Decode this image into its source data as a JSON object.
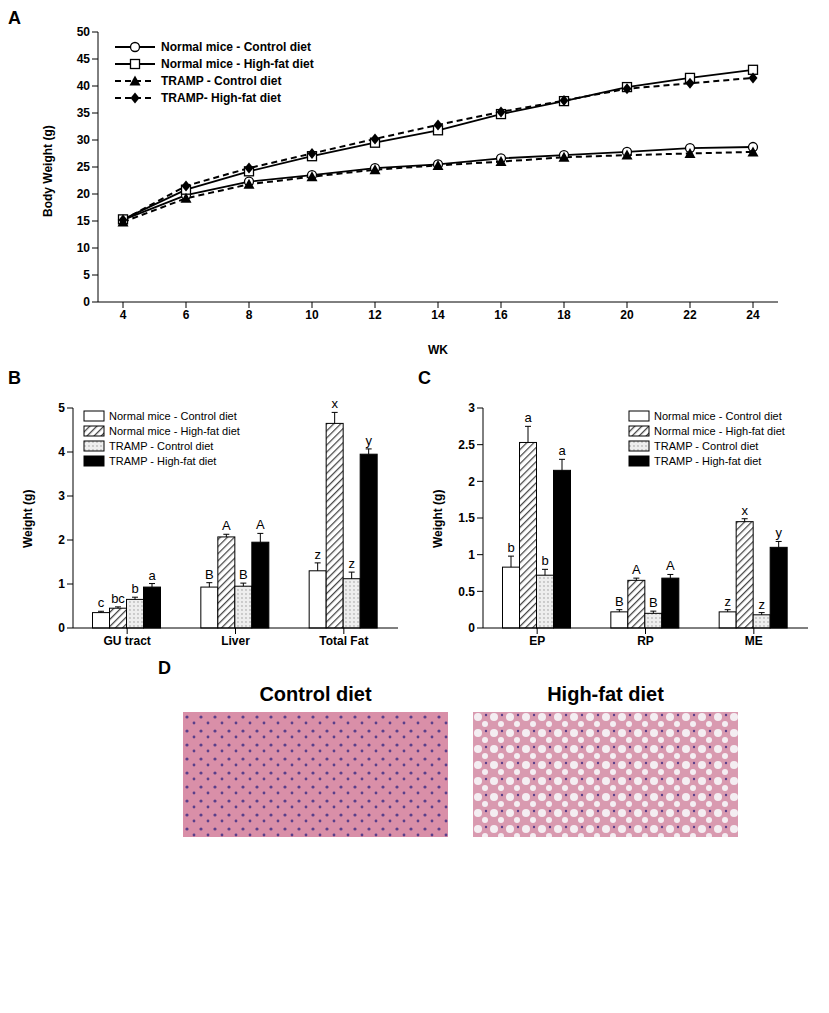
{
  "chart_data": [
    {
      "type": "line",
      "title": "A",
      "x_label": "WK",
      "y_label": "Body Weight (g)",
      "categories": [
        "4",
        "6",
        "8",
        "10",
        "12",
        "14",
        "16",
        "18",
        "20",
        "22",
        "24"
      ],
      "ylim": [
        0,
        50
      ],
      "yticks": [
        0,
        5,
        10,
        15,
        20,
        25,
        30,
        35,
        40,
        45,
        50
      ],
      "grid": false,
      "legend": "upper left",
      "series": [
        {
          "name": "Normal mice - Control diet",
          "color": "#000000",
          "marker": "circle_open",
          "line_style": "solid",
          "values": [
            15.2,
            19.8,
            22.3,
            23.5,
            24.8,
            25.5,
            26.6,
            27.2,
            27.8,
            28.5,
            28.7
          ]
        },
        {
          "name": "Normal mice - High-fat diet",
          "color": "#000000",
          "marker": "square_open",
          "line_style": "solid",
          "values": [
            15.3,
            20.8,
            24.2,
            27.0,
            29.5,
            31.8,
            34.8,
            37.2,
            39.8,
            41.5,
            43.0
          ]
        },
        {
          "name": "TRAMP - Control diet",
          "color": "#000000",
          "marker": "triangle",
          "line_style": "dashed",
          "values": [
            14.8,
            19.2,
            21.8,
            23.2,
            24.5,
            25.3,
            26.0,
            26.8,
            27.2,
            27.5,
            27.8
          ]
        },
        {
          "name": "TRAMP- High-fat diet",
          "color": "#000000",
          "marker": "diamond",
          "line_style": "dashed",
          "values": [
            15.2,
            21.5,
            24.8,
            27.5,
            30.2,
            32.8,
            35.2,
            37.3,
            39.5,
            40.5,
            41.5
          ]
        }
      ]
    },
    {
      "type": "bar",
      "title": "B",
      "y_label": "Weight (g)",
      "categories": [
        "GU tract",
        "Liver",
        "Total Fat"
      ],
      "ylim": [
        0,
        5
      ],
      "yticks": [
        0,
        1,
        2,
        3,
        4,
        5
      ],
      "grid": false,
      "legend": "upper left",
      "series": [
        {
          "name": "Normal mice - Control diet",
          "color": "#ffffff",
          "values": [
            0.35,
            0.93,
            1.3
          ],
          "errors": [
            0.03,
            0.1,
            0.18
          ],
          "letters": [
            "c",
            "B",
            "z"
          ]
        },
        {
          "name": "Normal mice - High-fat diet",
          "color": "#444444",
          "values": [
            0.45,
            2.07,
            4.65
          ],
          "errors": [
            0.03,
            0.06,
            0.25
          ],
          "letters": [
            "bc",
            "A",
            "x"
          ]
        },
        {
          "name": "TRAMP - Control diet",
          "color": "#bbbbbb",
          "values": [
            0.65,
            0.95,
            1.12
          ],
          "errors": [
            0.05,
            0.07,
            0.15
          ],
          "letters": [
            "b",
            "B",
            "z"
          ]
        },
        {
          "name": "TRAMP - High-fat diet",
          "color": "#000000",
          "values": [
            0.93,
            1.95,
            3.95
          ],
          "errors": [
            0.08,
            0.2,
            0.12
          ],
          "letters": [
            "a",
            "A",
            "y"
          ]
        }
      ]
    },
    {
      "type": "bar",
      "title": "C",
      "y_label": "Weight (g)",
      "categories": [
        "EP",
        "RP",
        "ME"
      ],
      "ylim": [
        0,
        3
      ],
      "yticks": [
        0,
        0.5,
        1,
        1.5,
        2,
        2.5,
        3
      ],
      "grid": false,
      "legend": "upper right",
      "series": [
        {
          "name": "Normal mice - Control diet",
          "color": "#ffffff",
          "values": [
            0.83,
            0.22,
            0.22
          ],
          "errors": [
            0.15,
            0.03,
            0.03
          ],
          "letters": [
            "b",
            "B",
            "z"
          ]
        },
        {
          "name": "Normal mice - High-fat diet",
          "color": "#444444",
          "values": [
            2.53,
            0.65,
            1.45
          ],
          "errors": [
            0.22,
            0.03,
            0.04
          ],
          "letters": [
            "a",
            "A",
            "x"
          ]
        },
        {
          "name": "TRAMP - Control diet",
          "color": "#bbbbbb",
          "values": [
            0.72,
            0.2,
            0.18
          ],
          "errors": [
            0.08,
            0.03,
            0.03
          ],
          "letters": [
            "b",
            "B",
            "z"
          ]
        },
        {
          "name": "TRAMP - High-fat diet",
          "color": "#000000",
          "values": [
            2.15,
            0.68,
            1.1
          ],
          "errors": [
            0.15,
            0.05,
            0.08
          ],
          "letters": [
            "a",
            "A",
            "y"
          ]
        }
      ]
    }
  ],
  "images": {
    "title": "D",
    "captions": [
      "Control diet",
      "High-fat diet"
    ]
  }
}
